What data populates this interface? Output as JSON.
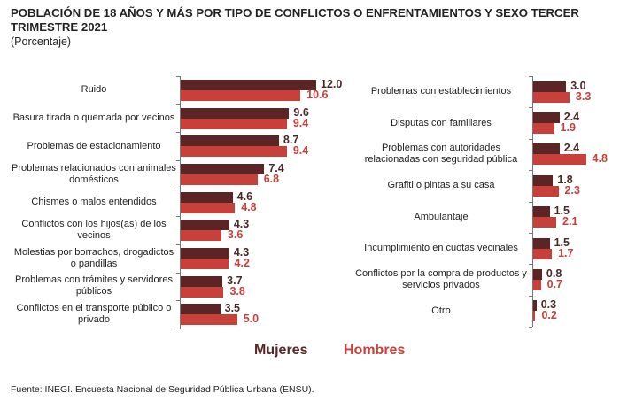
{
  "title": "POBLACIÓN DE 18 AÑOS Y MÁS POR TIPO DE CONFLICTOS O ENFRENTAMIENTOS Y SEXO TERCER TRIMESTRE 2021",
  "subtitle": "(Porcentaje)",
  "legend": {
    "mujeres": "Mujeres",
    "hombres": "Hombres"
  },
  "colors": {
    "mujeres": "#5a2524",
    "hombres": "#c8403a"
  },
  "footer": "Fuente: INEGI. Encuesta Nacional de Seguridad Pública Urbana (ENSU).",
  "chart_data": [
    {
      "type": "bar",
      "orientation": "horizontal",
      "title": "",
      "categories": [
        "Ruido",
        "Basura tirada o quemada por vecinos",
        "Problemas de estacionamiento",
        "Problemas relacionados con animales domésticos",
        "Chismes o malos entendidos",
        "Conflictos con los hijos(as) de los vecinos",
        "Molestias por borrachos, drogadictos o pandillas",
        "Problemas con trámites y servidores públicos",
        "Conflictos en el transporte público o privado"
      ],
      "series": [
        {
          "name": "Mujeres",
          "values": [
            12.0,
            9.6,
            8.7,
            7.4,
            4.6,
            4.3,
            4.3,
            3.7,
            3.5
          ]
        },
        {
          "name": "Hombres",
          "values": [
            10.6,
            9.4,
            9.4,
            6.8,
            4.8,
            3.6,
            4.2,
            3.8,
            5.0
          ]
        }
      ]
    },
    {
      "type": "bar",
      "orientation": "horizontal",
      "title": "",
      "categories": [
        "Problemas con establecimientos",
        "Disputas con familiares",
        "Problemas con autoridades relacionadas con seguridad pública",
        "Grafiti o pintas a su casa",
        "Ambulantaje",
        "Incumplimiento en cuotas vecinales",
        "Conflictos por la compra de productos y servicios privados",
        "Otro"
      ],
      "series": [
        {
          "name": "Mujeres",
          "values": [
            3.0,
            2.4,
            2.4,
            1.8,
            1.5,
            1.5,
            0.8,
            0.3
          ]
        },
        {
          "name": "Hombres",
          "values": [
            3.3,
            1.9,
            4.8,
            2.3,
            2.1,
            1.7,
            0.7,
            0.2
          ]
        }
      ]
    }
  ]
}
